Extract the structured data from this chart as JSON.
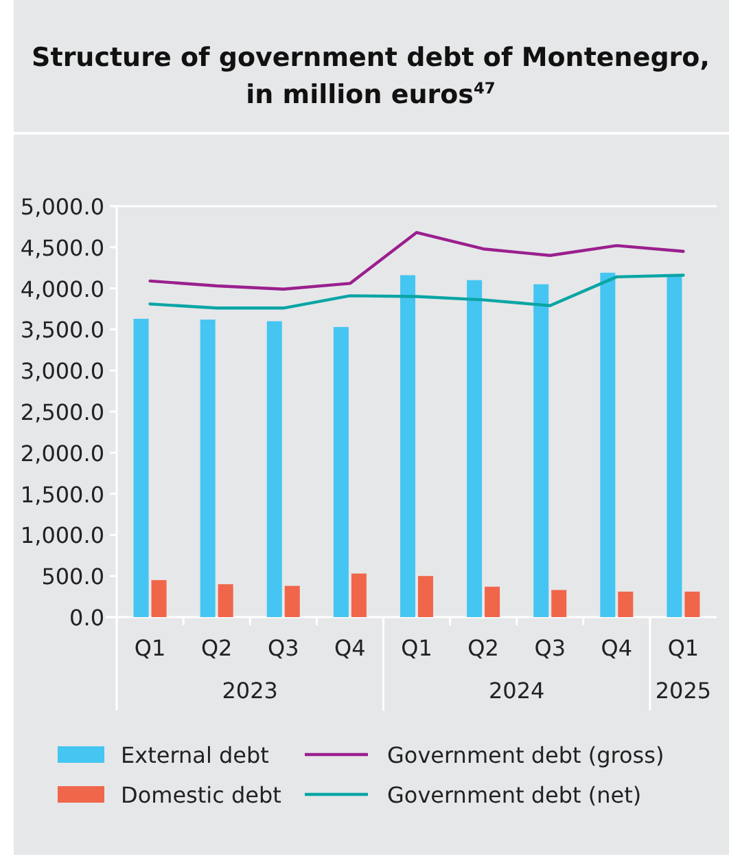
{
  "chart_data": {
    "type": "bar",
    "title": "Structure of government debt of Montenegro,\nin million euros$^{47}$",
    "categories": [
      "Q1",
      "Q2",
      "Q3",
      "Q4",
      "Q1",
      "Q2",
      "Q3",
      "Q4",
      "Q1"
    ],
    "annotations": [
      "2023",
      "2024",
      "2025"
    ],
    "series": [
      {
        "name": "External debt",
        "color": "#45c5f2",
        "values": [
          3630,
          3620,
          3600,
          3530,
          4160,
          4100,
          4050,
          4190,
          4150
        ]
      },
      {
        "name": "Domestic debt",
        "color": "#f0664a",
        "values": [
          450,
          400,
          380,
          530,
          500,
          370,
          330,
          310,
          310
        ]
      },
      {
        "name": "Government debt (gross)",
        "type": "line",
        "color": "#9a1f8e",
        "values": [
          4090,
          4030,
          3990,
          4060,
          4680,
          4480,
          4400,
          4520,
          4450
        ]
      },
      {
        "name": "Government debt (net)",
        "type": "line",
        "color": "#0aa5a5",
        "values": [
          3810,
          3760,
          3760,
          3910,
          3900,
          3860,
          3790,
          4140,
          4160
        ]
      }
    ],
    "ylim": [
      0,
      5000
    ],
    "yticks": [
      {
        "value": 0,
        "label": "0.0"
      },
      {
        "value": 500,
        "label": "500.0"
      },
      {
        "value": 1000,
        "label": "1,000.0"
      },
      {
        "value": 1500,
        "label": "1,500.0"
      },
      {
        "value": 2000,
        "label": "2,000.0"
      },
      {
        "value": 2500,
        "label": "2,500.0"
      },
      {
        "value": 3000,
        "label": "3,000.0"
      },
      {
        "value": 3500,
        "label": "3,500.0"
      },
      {
        "value": 4000,
        "label": "4,000.0"
      },
      {
        "value": 4500,
        "label": "4,500.0"
      },
      {
        "value": 5000,
        "label": "5,000.0"
      }
    ],
    "grid": false,
    "legend": "bottom"
  }
}
